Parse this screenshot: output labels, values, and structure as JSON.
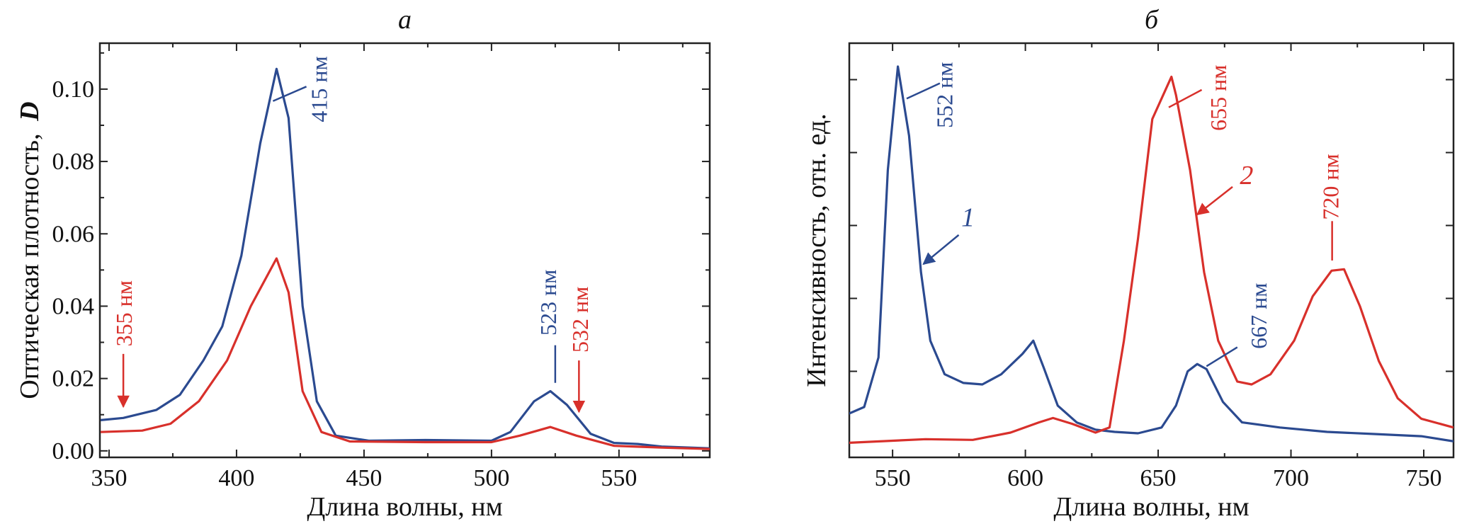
{
  "colors": {
    "blue": "#2b4a90",
    "red": "#d8302b"
  },
  "chart_data": [
    {
      "type": "line",
      "title": "а",
      "xlabel": "Длина волны, нм",
      "ylabel": "Оптическая плотность, ",
      "ylabel_symbol": "D",
      "xlim": [
        346.4,
        585.6
      ],
      "ylim": [
        -0.0018,
        0.1127
      ],
      "xticks": [
        350,
        400,
        450,
        500,
        550
      ],
      "xtick_labels": [
        "350",
        "400",
        "450",
        "500",
        "550"
      ],
      "xminor": [
        375,
        425,
        475,
        525,
        575
      ],
      "yticks": [
        0.0,
        0.02,
        0.04,
        0.06,
        0.08,
        0.1
      ],
      "ytick_labels": [
        "0.00",
        "0.02",
        "0.04",
        "0.06",
        "0.08",
        "0.10"
      ],
      "yminor": [
        0.01,
        0.03,
        0.05,
        0.07,
        0.09,
        0.11
      ],
      "grid": false,
      "series": [
        {
          "color": "#2b4a90",
          "x": [
            346.7,
            355.6,
            368.5,
            377.8,
            387,
            394.4,
            401.9,
            409.3,
            415.7,
            420.4,
            425.9,
            431.5,
            438.9,
            451.9,
            474.1,
            500,
            507.4,
            516.7,
            523.1,
            529.6,
            538.9,
            548.1,
            557.4,
            566.7,
            585.7
          ],
          "y": [
            0.0085,
            0.0091,
            0.0113,
            0.0155,
            0.025,
            0.0344,
            0.054,
            0.085,
            0.1056,
            0.092,
            0.04,
            0.0137,
            0.0042,
            0.0028,
            0.003,
            0.0028,
            0.0052,
            0.0137,
            0.0165,
            0.0127,
            0.0047,
            0.0022,
            0.0019,
            0.0012,
            0.0007
          ]
        },
        {
          "color": "#d8302b",
          "x": [
            346.7,
            363,
            374.1,
            385.2,
            396.3,
            405.6,
            415.7,
            420.4,
            425.9,
            433.3,
            444.4,
            474.1,
            500,
            511.1,
            523.1,
            533.3,
            548.1,
            566.7,
            585.7
          ],
          "y": [
            0.0052,
            0.0056,
            0.0075,
            0.0137,
            0.025,
            0.04,
            0.0532,
            0.0438,
            0.0165,
            0.0052,
            0.0026,
            0.0024,
            0.0024,
            0.0042,
            0.0066,
            0.0042,
            0.0014,
            0.0009,
            0.0005
          ]
        }
      ],
      "annotations": [
        {
          "text": "415 нм",
          "color": "#2b4a90",
          "x": 432.4,
          "y": 0.1,
          "line": [
            414.3,
            0.0967,
            427.4,
            0.1007
          ],
          "arrow": false
        },
        {
          "text": "355 нм",
          "color": "#d8302b",
          "x": 355.9,
          "y": 0.038,
          "line": [
            355.6,
            0.0268,
            355.6,
            0.0122
          ],
          "arrow": true
        },
        {
          "text": "523 нм",
          "color": "#2b4a90",
          "x": 522.2,
          "y": 0.041,
          "line": [
            525,
            0.0292,
            525,
            0.0188
          ],
          "arrow": false
        },
        {
          "text": "532 нм",
          "color": "#d8302b",
          "x": 534.8,
          "y": 0.0363,
          "line": [
            534.3,
            0.025,
            534.3,
            0.0108
          ],
          "arrow": true
        }
      ]
    },
    {
      "type": "line",
      "title": "б",
      "xlabel": "Длина волны, нм",
      "ylabel": "Интенсивность, отн. ед.",
      "xlim": [
        533.7,
        761.2
      ],
      "ylim": [
        -0.18,
        5.5
      ],
      "xticks": [
        550,
        600,
        650,
        700,
        750
      ],
      "xtick_labels": [
        "550",
        "600",
        "650",
        "700",
        "750"
      ],
      "xminor": [
        575,
        625,
        675,
        725
      ],
      "yticks": [
        1,
        2,
        3,
        4,
        5
      ],
      "ytick_labels": [],
      "grid": false,
      "series": [
        {
          "name": "1",
          "color": "#2b4a90",
          "x": [
            533.6,
            539.3,
            544.7,
            548.2,
            552,
            556.2,
            560.7,
            564.2,
            569.6,
            576.7,
            583.8,
            590.9,
            598.9,
            603,
            606.9,
            612.2,
            619.3,
            626.4,
            633.6,
            642.4,
            651.3,
            656.7,
            661.1,
            664.7,
            668.2,
            674.4,
            681.6,
            695.8,
            713.6,
            731.3,
            749.1,
            761.2
          ],
          "y": [
            0.42,
            0.51,
            1.19,
            3.76,
            5.18,
            4.23,
            2.36,
            1.42,
            0.96,
            0.84,
            0.82,
            0.96,
            1.24,
            1.42,
            1.05,
            0.53,
            0.3,
            0.2,
            0.17,
            0.15,
            0.23,
            0.53,
            1.0,
            1.1,
            1.03,
            0.58,
            0.3,
            0.23,
            0.17,
            0.14,
            0.11,
            0.04
          ]
        },
        {
          "name": "2",
          "color": "#d8302b",
          "x": [
            533.6,
            562.4,
            580.2,
            594.4,
            605.1,
            610.4,
            617.6,
            626.4,
            631.7,
            637.1,
            642.4,
            647.8,
            655,
            656.7,
            662,
            667.3,
            672.6,
            679.8,
            685.2,
            692.3,
            701.2,
            708.2,
            715.3,
            720,
            726,
            733.1,
            740.2,
            749.1,
            761.2
          ],
          "y": [
            0.02,
            0.07,
            0.06,
            0.16,
            0.3,
            0.36,
            0.28,
            0.16,
            0.23,
            1.42,
            2.82,
            4.46,
            5.04,
            4.79,
            3.76,
            2.36,
            1.42,
            0.86,
            0.82,
            0.96,
            1.42,
            2.03,
            2.38,
            2.4,
            1.89,
            1.14,
            0.63,
            0.35,
            0.23
          ]
        }
      ],
      "annotations": [
        {
          "text": "552 нм",
          "color": "#2b4a90",
          "x": 569.6,
          "y": 4.79,
          "line": [
            555.3,
            4.74,
            567.8,
            4.95
          ],
          "arrow": false
        },
        {
          "text": "655 нм",
          "color": "#d8302b",
          "x": 672.7,
          "y": 4.75,
          "line": [
            654,
            4.62,
            666.4,
            4.86
          ],
          "arrow": false
        },
        {
          "text": "720 нм",
          "color": "#d8302b",
          "x": 714.9,
          "y": 3.53,
          "line": [
            715.5,
            3.06,
            715.5,
            2.52
          ],
          "arrow": false
        },
        {
          "text": "667 нм",
          "color": "#2b4a90",
          "x": 687.8,
          "y": 1.76,
          "line": [
            668.2,
            1.07,
            679.8,
            1.33
          ],
          "arrow": false
        }
      ],
      "series_labels": [
        {
          "text": "1",
          "color": "#2b4a90",
          "x": 578.4,
          "y": 2.99,
          "line": [
            574.9,
            2.87,
            561.6,
            2.47
          ]
        },
        {
          "text": "2",
          "color": "#d8302b",
          "x": 683.3,
          "y": 3.57,
          "line": [
            678,
            3.53,
            664.7,
            3.15
          ]
        }
      ]
    }
  ]
}
